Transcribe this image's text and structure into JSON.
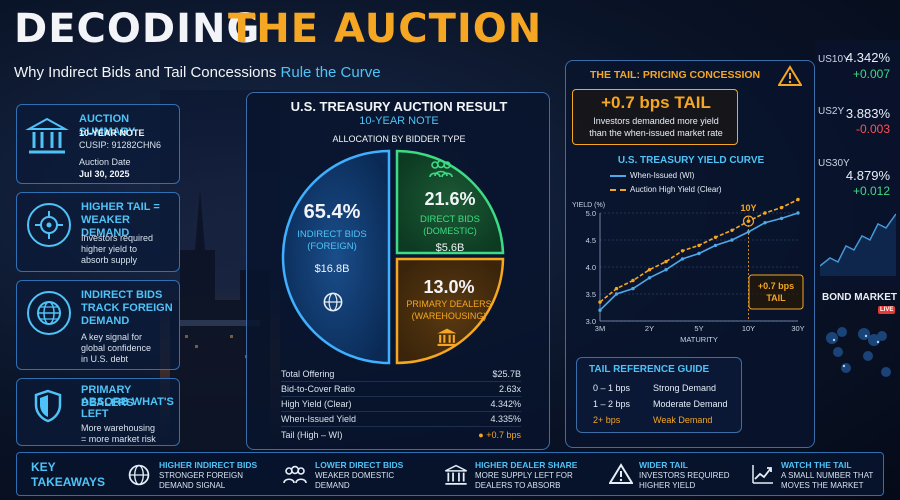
{
  "header": {
    "title_part1": "DECODING",
    "title_part2": "THE AUCTION",
    "subtitle_plain": "Why Indirect Bids and Tail Concessions ",
    "subtitle_highlight": "Rule the Curve"
  },
  "left_cards": {
    "summary": {
      "title": "AUCTION SUMMARY",
      "note": "10-YEAR NOTE",
      "cusip": "CUSIP: 91282CHN6",
      "date_label": "Auction Date",
      "date": "Jul 30, 2025"
    },
    "card2": {
      "title1": "HIGHER TAIL =",
      "title2": "WEAKER DEMAND",
      "text1": "Investors required",
      "text2": "higher yield to",
      "text3": "absorb supply"
    },
    "card3": {
      "title1": "INDIRECT BIDS",
      "title2": "TRACK FOREIGN",
      "title3": "DEMAND",
      "text1": "A key signal for",
      "text2": "global confidence",
      "text3": "in U.S. debt"
    },
    "card4": {
      "title1": "PRIMARY DEALERS",
      "title2": "ABSORB WHAT'S",
      "title3": "LEFT",
      "text1": "More warehousing",
      "text2": "= more market risk"
    }
  },
  "center": {
    "heading": "U.S. TREASURY AUCTION RESULT",
    "subheading": "10-YEAR NOTE",
    "alloc_heading": "ALLOCATION BY BIDDER TYPE",
    "indirect": {
      "pct": "65.4%",
      "label1": "INDIRECT BIDS",
      "label2": "(FOREIGN)",
      "amount": "$16.8B",
      "value": 65.4
    },
    "direct": {
      "pct": "21.6%",
      "label1": "DIRECT BIDS",
      "label2": "(DOMESTIC)",
      "amount": "$5.6B",
      "value": 21.6
    },
    "dealers": {
      "pct": "13.0%",
      "label1": "PRIMARY DEALERS",
      "label2": "(WAREHOUSING)",
      "value": 13.0
    },
    "stats": [
      {
        "label": "Total Offering",
        "value": "$25.7B"
      },
      {
        "label": "Bid-to-Cover Ratio",
        "value": "2.63x"
      },
      {
        "label": "High Yield (Clear)",
        "value": "4.342%"
      },
      {
        "label": "When-Issued Yield",
        "value": "4.335%"
      },
      {
        "label": "Tail (High – WI)",
        "value": "+0.7 bps"
      }
    ]
  },
  "right": {
    "tail_heading": "THE TAIL: PRICING CONCESSION",
    "tail_value": "+0.7 bps TAIL",
    "tail_text1": "Investors demanded more yield",
    "tail_text2": "than the when-issued market rate",
    "curve_heading": "U.S. TREASURY YIELD CURVE",
    "legend_wi": "When-Issued (WI)",
    "legend_clear": "Auction High Yield (Clear)",
    "marker_label": "10Y",
    "callout1": "+0.7 bps",
    "callout2": "TAIL",
    "guide_heading": "TAIL REFERENCE GUIDE",
    "guide": [
      {
        "range": "0 – 1 bps",
        "label": "Strong Demand"
      },
      {
        "range": "1 – 2 bps",
        "label": "Moderate Demand"
      },
      {
        "range": "2+ bps",
        "label": "Weak Demand"
      }
    ]
  },
  "chart_data": {
    "type": "line",
    "title": "U.S. TREASURY YIELD CURVE",
    "xlabel": "MATURITY",
    "ylabel": "YIELD (%)",
    "ylim": [
      3.0,
      5.0
    ],
    "x_ticks": [
      "3M",
      "2Y",
      "5Y",
      "10Y",
      "30Y"
    ],
    "y_ticks": [
      "3.0",
      "3.5",
      "4.0",
      "4.5",
      "5.0"
    ],
    "x": [
      0,
      1,
      2,
      3,
      4,
      5,
      6,
      7,
      8,
      9,
      10,
      11,
      12
    ],
    "series": [
      {
        "name": "When-Issued (WI)",
        "color": "#4fa8e8",
        "values": [
          3.2,
          3.5,
          3.6,
          3.8,
          3.95,
          4.15,
          4.25,
          4.4,
          4.5,
          4.65,
          4.82,
          4.9,
          5.0
        ]
      },
      {
        "name": "Auction High Yield (Clear)",
        "color": "#f5a623",
        "values": [
          3.35,
          3.6,
          3.75,
          3.95,
          4.1,
          4.3,
          4.4,
          4.55,
          4.68,
          4.85,
          5.0,
          5.1,
          5.25
        ]
      }
    ],
    "grid": true
  },
  "ticker": [
    {
      "sym": "US10Y",
      "val": "4.342%",
      "chg": "+0.007",
      "dir": "up"
    },
    {
      "sym": "US2Y",
      "val": "3.883%",
      "chg": "-0.003",
      "dir": "dn"
    },
    {
      "sym": "US30Y",
      "val": "4.879%",
      "chg": "+0.012",
      "dir": "up"
    }
  ],
  "bond_market": {
    "label": "BOND MARKET",
    "live": "LIVE"
  },
  "bottom": {
    "heading1": "KEY",
    "heading2": "TAKEAWAYS",
    "items": [
      {
        "title": "HIGHER INDIRECT BIDS",
        "sub1": "STRONGER FOREIGN",
        "sub2": "DEMAND SIGNAL"
      },
      {
        "title": "LOWER DIRECT BIDS",
        "sub1": "WEAKER DOMESTIC",
        "sub2": "DEMAND"
      },
      {
        "title": "HIGHER DEALER SHARE",
        "sub1": "MORE SUPPLY LEFT FOR",
        "sub2": "DEALERS TO ABSORB"
      },
      {
        "title": "WIDER TAIL",
        "sub1": "INVESTORS REQUIRED",
        "sub2": "HIGHER YIELD"
      },
      {
        "title": "WATCH THE TAIL",
        "sub1": "A SMALL NUMBER THAT",
        "sub2": "MOVES THE MARKET"
      }
    ]
  }
}
